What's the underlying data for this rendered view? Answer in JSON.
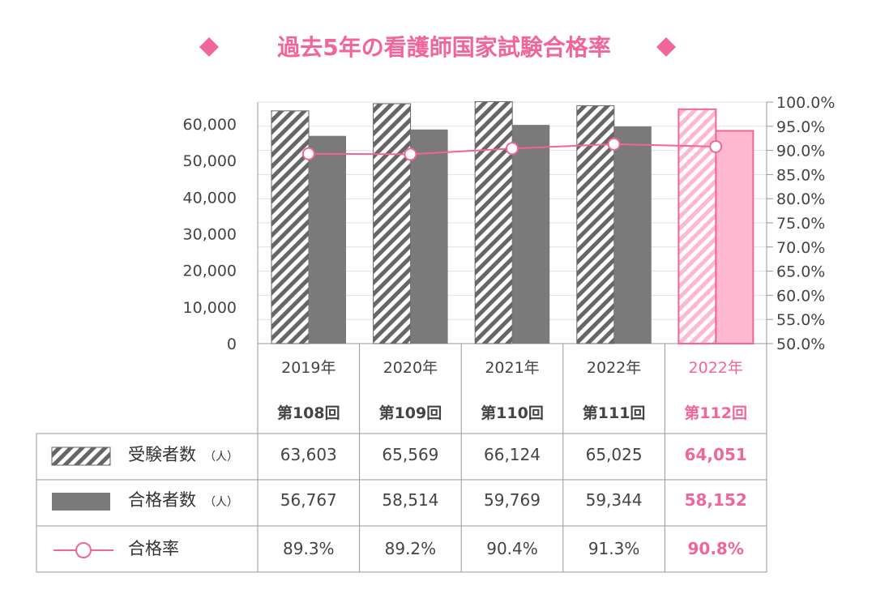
{
  "title": "過去5年の看護師国家試験合格率",
  "colors": {
    "accent": "#f0669a",
    "accent_fill": "#ffb8cf",
    "gray_bar": "#7a7a7a",
    "hatch": "#666666",
    "grid": "#e0e0e0",
    "border": "#999999"
  },
  "chart_data": {
    "type": "bar",
    "categories": [
      "2019年",
      "2020年",
      "2021年",
      "2022年",
      "2022年"
    ],
    "sub_categories": [
      "第108回",
      "第109回",
      "第110回",
      "第111回",
      "第112回"
    ],
    "highlight_index": 4,
    "series": [
      {
        "name": "受験者数",
        "unit": "（人）",
        "type": "bar",
        "axis": "left",
        "values": [
          63603,
          65569,
          66124,
          65025,
          64051
        ],
        "display": [
          "63,603",
          "65,569",
          "66,124",
          "65,025",
          "64,051"
        ]
      },
      {
        "name": "合格者数",
        "unit": "（人）",
        "type": "bar",
        "axis": "left",
        "values": [
          56767,
          58514,
          59769,
          59344,
          58152
        ],
        "display": [
          "56,767",
          "58,514",
          "59,769",
          "59,344",
          "58,152"
        ]
      },
      {
        "name": "合格率",
        "unit": "",
        "type": "line",
        "axis": "right",
        "values": [
          89.3,
          89.2,
          90.4,
          91.3,
          90.8
        ],
        "display": [
          "89.3%",
          "89.2%",
          "90.4%",
          "91.3%",
          "90.8%"
        ]
      }
    ],
    "left_axis": {
      "min": 0,
      "max": 66000,
      "ticks": [
        0,
        10000,
        20000,
        30000,
        40000,
        50000,
        60000
      ],
      "tick_labels": [
        "0",
        "10,000",
        "20,000",
        "30,000",
        "40,000",
        "50,000",
        "60,000"
      ]
    },
    "right_axis": {
      "min": 50,
      "max": 100,
      "ticks": [
        50,
        55,
        60,
        65,
        70,
        75,
        80,
        85,
        90,
        95,
        100
      ],
      "tick_labels": [
        "50.0%",
        "55.0%",
        "60.0%",
        "65.0%",
        "70.0%",
        "75.0%",
        "80.0%",
        "85.0%",
        "90.0%",
        "95.0%",
        "100.0%"
      ]
    },
    "grid": true,
    "legend": "data-table-bottom"
  }
}
